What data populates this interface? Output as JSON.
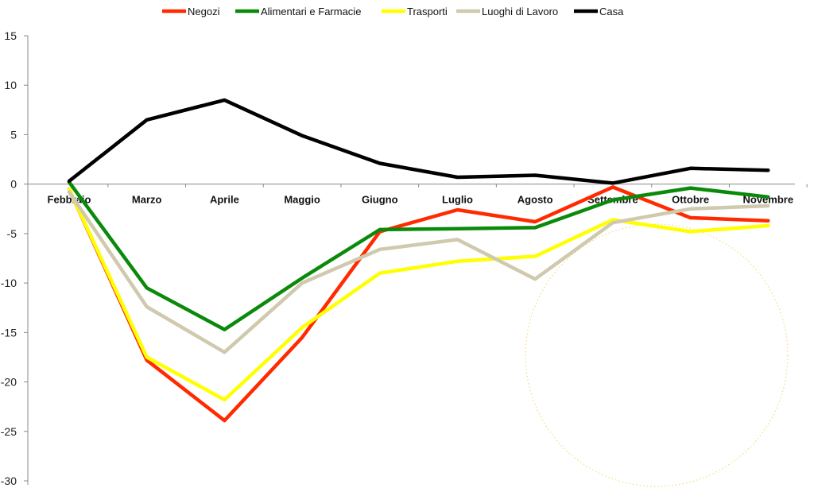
{
  "chart_data": {
    "type": "line",
    "title": "",
    "xlabel": "",
    "ylabel": "",
    "categories": [
      "Febbraio",
      "Marzo",
      "Aprile",
      "Maggio",
      "Giugno",
      "Luglio",
      "Agosto",
      "Settembre",
      "Ottobre",
      "Novembre"
    ],
    "ylim": [
      -30,
      15
    ],
    "yticks": [
      "15",
      "10",
      "5",
      "0",
      "-5",
      "-10",
      "-15",
      "-20",
      "-25",
      "-30"
    ],
    "grid": false,
    "legend_position": "top",
    "series": [
      {
        "name": "Negozi",
        "color": "#ff2a00",
        "values": [
          -0.5,
          -17.8,
          -23.9,
          -15.5,
          -4.8,
          -2.6,
          -3.8,
          -0.3,
          -3.4,
          -3.7
        ]
      },
      {
        "name": "Alimentari e Farmacie",
        "color": "#0a8a0a",
        "values": [
          0.2,
          -10.5,
          -14.7,
          -9.5,
          -4.6,
          -4.5,
          -4.4,
          -1.6,
          -0.4,
          -1.3
        ]
      },
      {
        "name": "Trasporti",
        "color": "#ffff00",
        "values": [
          -0.5,
          -17.5,
          -21.8,
          -14.5,
          -9.0,
          -7.8,
          -7.3,
          -3.6,
          -4.8,
          -4.2
        ]
      },
      {
        "name": "Luoghi di Lavoro",
        "color": "#cfc9ae",
        "values": [
          -0.8,
          -12.4,
          -17.0,
          -10.0,
          -6.6,
          -5.6,
          -9.6,
          -3.9,
          -2.5,
          -2.2
        ]
      },
      {
        "name": "Casa",
        "color": "#000000",
        "values": [
          0.3,
          6.5,
          8.5,
          4.9,
          2.1,
          0.7,
          0.9,
          0.1,
          1.6,
          1.4
        ]
      }
    ]
  }
}
